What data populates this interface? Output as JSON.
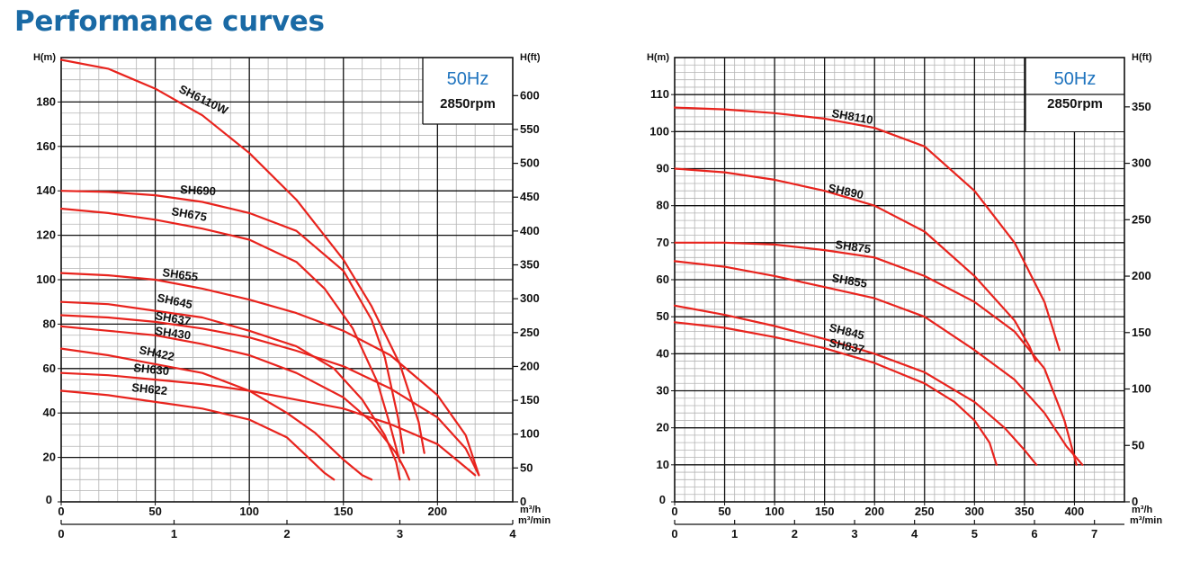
{
  "page": {
    "title": "Performance curves"
  },
  "chart_data": [
    {
      "type": "line",
      "title": "",
      "info_box": {
        "frequency": "50Hz",
        "speed": "2850rpm"
      },
      "xlabel": "m³/h",
      "x2label": "m³/min",
      "ylabel": "H(m)",
      "y2label": "H(ft)",
      "xlim": [
        0,
        240
      ],
      "ylim": [
        0,
        200
      ],
      "x2lim": [
        0,
        4
      ],
      "y2lim": [
        0,
        656.2
      ],
      "x_ticks": [
        0,
        50,
        100,
        150,
        200
      ],
      "x2_ticks": [
        0,
        1,
        2,
        3,
        4
      ],
      "y_ticks": [
        0,
        20,
        40,
        60,
        80,
        100,
        120,
        140,
        160,
        180
      ],
      "y2_ticks": [
        0,
        50,
        100,
        150,
        200,
        250,
        300,
        350,
        400,
        450,
        500,
        550,
        600
      ],
      "grid": true,
      "series": [
        {
          "name": "SH6110W",
          "x": [
            0,
            25,
            50,
            75,
            100,
            125,
            150,
            165,
            180,
            190,
            193
          ],
          "y": [
            199,
            195,
            186,
            174,
            157,
            136,
            109,
            88,
            62,
            36,
            22
          ]
        },
        {
          "name": "SH690",
          "x": [
            0,
            25,
            50,
            75,
            100,
            125,
            150,
            165,
            172,
            179,
            182
          ],
          "y": [
            140,
            139.5,
            138,
            135,
            130,
            122,
            104,
            82,
            65,
            38,
            22
          ]
        },
        {
          "name": "SH675",
          "x": [
            0,
            25,
            50,
            75,
            100,
            125,
            140,
            155,
            168,
            175,
            180
          ],
          "y": [
            132,
            130,
            127,
            123,
            118,
            108,
            96,
            78,
            54,
            34,
            18
          ]
        },
        {
          "name": "SH655",
          "x": [
            0,
            25,
            50,
            75,
            100,
            125,
            150,
            175,
            200,
            215,
            222
          ],
          "y": [
            103,
            102,
            100,
            96,
            91,
            85,
            77,
            66,
            48,
            30,
            12
          ]
        },
        {
          "name": "SH645",
          "x": [
            0,
            25,
            50,
            75,
            100,
            125,
            145,
            160,
            172,
            178,
            180
          ],
          "y": [
            90,
            89,
            86,
            83,
            77,
            70,
            60,
            46,
            30,
            18,
            10
          ]
        },
        {
          "name": "SH637",
          "x": [
            0,
            25,
            50,
            75,
            100,
            125,
            150,
            175,
            200,
            215,
            222
          ],
          "y": [
            84,
            83,
            81,
            78,
            74,
            68,
            61,
            51,
            38,
            24,
            12
          ]
        },
        {
          "name": "SH430",
          "x": [
            0,
            25,
            50,
            75,
            100,
            125,
            150,
            165,
            178,
            183,
            185
          ],
          "y": [
            79,
            77,
            75,
            71,
            66,
            58,
            47,
            36,
            22,
            14,
            10
          ]
        },
        {
          "name": "SH422",
          "x": [
            0,
            25,
            50,
            75,
            100,
            120,
            135,
            150,
            160,
            165
          ],
          "y": [
            69,
            66,
            62,
            58,
            50,
            40,
            31,
            19,
            12,
            10
          ]
        },
        {
          "name": "SH630",
          "x": [
            0,
            25,
            50,
            75,
            100,
            125,
            150,
            175,
            200,
            220
          ],
          "y": [
            58,
            57,
            55,
            53,
            50,
            46,
            42,
            35,
            26,
            12
          ]
        },
        {
          "name": "SH622",
          "x": [
            0,
            25,
            50,
            75,
            100,
            120,
            130,
            140,
            145
          ],
          "y": [
            50,
            48,
            45,
            42,
            37,
            29,
            21,
            13,
            10
          ]
        }
      ]
    },
    {
      "type": "line",
      "title": "",
      "info_box": {
        "frequency": "50Hz",
        "speed": "2850rpm"
      },
      "xlabel": "m³/h",
      "x2label": "m³/min",
      "ylabel": "H(m)",
      "y2label": "H(ft)",
      "xlim": [
        0,
        450
      ],
      "ylim": [
        0,
        120
      ],
      "x2lim": [
        0,
        7.5
      ],
      "y2lim": [
        0,
        393.7
      ],
      "x_ticks": [
        0,
        50,
        100,
        150,
        200,
        250,
        300,
        350,
        400
      ],
      "x2_ticks": [
        0,
        1,
        2,
        3,
        4,
        5,
        6,
        7
      ],
      "y_ticks": [
        0,
        10,
        20,
        30,
        40,
        50,
        60,
        70,
        80,
        90,
        100,
        110
      ],
      "y2_ticks": [
        0,
        50,
        100,
        150,
        200,
        250,
        300,
        350
      ],
      "grid": true,
      "series": [
        {
          "name": "SH8110",
          "x": [
            0,
            50,
            100,
            150,
            200,
            250,
            300,
            340,
            370,
            385
          ],
          "y": [
            106.5,
            106,
            105,
            103.5,
            101,
            96,
            84,
            70,
            54,
            41
          ]
        },
        {
          "name": "SH890",
          "x": [
            0,
            50,
            100,
            150,
            200,
            250,
            300,
            340,
            355,
            361
          ],
          "y": [
            90,
            89,
            87,
            84,
            80,
            73,
            61,
            49,
            42,
            38
          ]
        },
        {
          "name": "SH875",
          "x": [
            0,
            50,
            100,
            150,
            200,
            250,
            300,
            340,
            370,
            390,
            402
          ],
          "y": [
            70,
            70,
            69.5,
            68,
            66,
            61,
            54,
            46,
            36,
            22,
            10
          ]
        },
        {
          "name": "SH855",
          "x": [
            0,
            50,
            100,
            150,
            200,
            250,
            300,
            340,
            370,
            392,
            408
          ],
          "y": [
            65,
            63.5,
            61,
            58,
            55,
            50,
            41,
            33,
            24,
            15,
            10
          ]
        },
        {
          "name": "SH845",
          "x": [
            0,
            50,
            100,
            150,
            200,
            250,
            300,
            330,
            350,
            362
          ],
          "y": [
            53,
            50.5,
            47.5,
            44,
            40,
            35,
            27,
            20,
            14,
            10
          ]
        },
        {
          "name": "SH837",
          "x": [
            0,
            50,
            100,
            150,
            200,
            250,
            280,
            300,
            315,
            322
          ],
          "y": [
            48.5,
            47,
            44.5,
            41.5,
            37.5,
            32,
            27,
            22,
            16,
            10
          ]
        }
      ]
    }
  ]
}
